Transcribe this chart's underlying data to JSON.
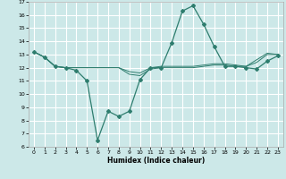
{
  "xlabel": "Humidex (Indice chaleur)",
  "background_color": "#cce8e8",
  "grid_color": "#ffffff",
  "line_color": "#2e7d6e",
  "xlim": [
    -0.5,
    23.5
  ],
  "ylim": [
    6,
    17
  ],
  "xticks": [
    0,
    1,
    2,
    3,
    4,
    5,
    6,
    7,
    8,
    9,
    10,
    11,
    12,
    13,
    14,
    15,
    16,
    17,
    18,
    19,
    20,
    21,
    22,
    23
  ],
  "yticks": [
    6,
    7,
    8,
    9,
    10,
    11,
    12,
    13,
    14,
    15,
    16,
    17
  ],
  "line1_x": [
    0,
    1,
    2,
    3,
    4,
    5,
    6,
    7,
    8,
    9,
    10,
    11,
    12,
    13,
    14,
    15,
    16,
    17,
    18,
    19,
    20,
    21,
    22,
    23
  ],
  "line1_y": [
    13.2,
    12.8,
    12.1,
    12.0,
    11.8,
    11.0,
    6.5,
    8.7,
    8.3,
    8.7,
    11.1,
    12.0,
    12.0,
    13.9,
    16.3,
    16.7,
    15.3,
    13.6,
    12.1,
    12.1,
    12.0,
    11.9,
    12.5,
    12.9
  ],
  "line2_x": [
    0,
    1,
    2,
    3,
    4,
    5,
    6,
    7,
    8,
    9,
    10,
    11,
    12,
    13,
    14,
    15,
    16,
    17,
    18,
    19,
    20,
    21,
    22,
    23
  ],
  "line2_y": [
    13.2,
    12.8,
    12.1,
    12.0,
    12.0,
    12.0,
    12.0,
    12.0,
    12.0,
    11.5,
    11.4,
    11.9,
    12.0,
    12.0,
    12.0,
    12.0,
    12.1,
    12.2,
    12.2,
    12.1,
    12.1,
    12.4,
    13.0,
    13.0
  ],
  "line3_x": [
    0,
    1,
    2,
    3,
    4,
    5,
    6,
    7,
    8,
    9,
    10,
    11,
    12,
    13,
    14,
    15,
    16,
    17,
    18,
    19,
    20,
    21,
    22,
    23
  ],
  "line3_y": [
    13.2,
    12.8,
    12.1,
    12.0,
    12.0,
    12.0,
    12.0,
    12.0,
    12.0,
    11.7,
    11.6,
    12.0,
    12.1,
    12.1,
    12.1,
    12.1,
    12.2,
    12.3,
    12.3,
    12.2,
    12.1,
    12.6,
    13.1,
    13.0
  ]
}
